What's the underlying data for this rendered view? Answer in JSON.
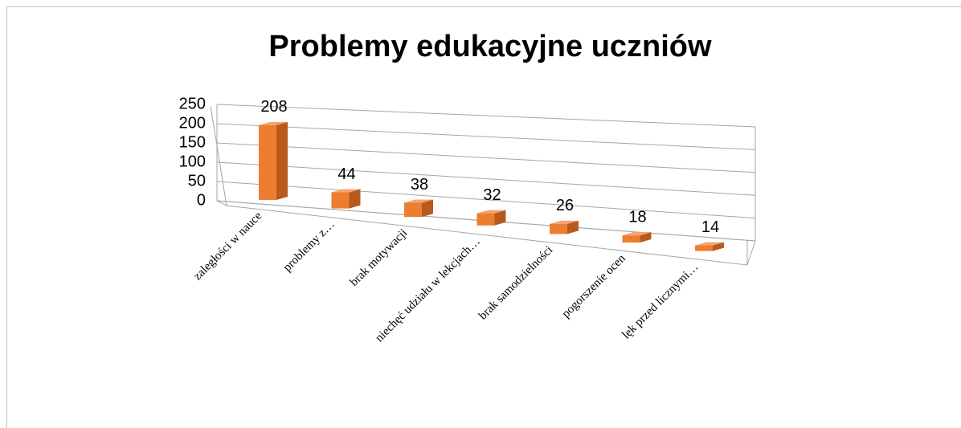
{
  "chart_data": {
    "type": "bar3d",
    "title": "Problemy edukacyjne uczniów",
    "categories": [
      "zaległości w nauce",
      "problemy z…",
      "brak motywacji",
      "niechęć udziału w lekcjach…",
      "brak samodzielności",
      "pogorszenie ocen",
      "lęk przed licznymi…"
    ],
    "values": [
      208,
      44,
      38,
      32,
      26,
      18,
      14
    ],
    "color": "#ed7d31",
    "ylim": [
      0,
      250
    ],
    "yticks": [
      0,
      50,
      100,
      150,
      200,
      250
    ],
    "grid": true,
    "data_labels": true
  }
}
